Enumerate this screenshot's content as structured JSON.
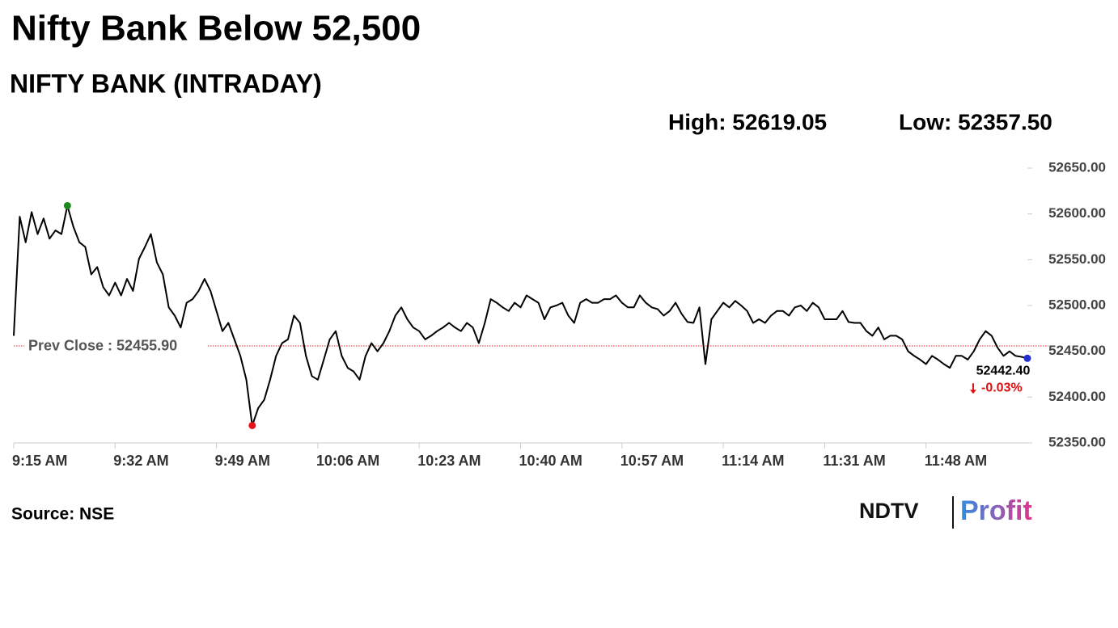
{
  "chart_data": {
    "type": "line",
    "title": "Nifty Bank Below 52,500",
    "subtitle": "NIFTY BANK (INTRADAY)",
    "high_text": "High: 52619.05",
    "low_text": "Low: 52357.50",
    "source": "Source: NSE",
    "logo": {
      "brand": "NDTV",
      "product": "Profit"
    },
    "prev_close": {
      "label": "Prev Close : 52455.90",
      "value": 52455.9
    },
    "last_value_label": "52442.40",
    "change": "-0.03%",
    "line_color": "#000000",
    "high_color": "#1a8a1a",
    "low_color": "#e8141b",
    "last_color": "#1f2fd0",
    "x": [
      "9:15 AM",
      "9:16 AM",
      "9:17 AM",
      "9:18 AM",
      "9:19 AM",
      "9:20 AM",
      "9:21 AM",
      "9:22 AM",
      "9:23 AM",
      "9:24 AM",
      "9:25 AM",
      "9:26 AM",
      "9:27 AM",
      "9:28 AM",
      "9:29 AM",
      "9:30 AM",
      "9:31 AM",
      "9:32 AM",
      "9:33 AM",
      "9:34 AM",
      "9:35 AM",
      "9:36 AM",
      "9:37 AM",
      "9:38 AM",
      "9:39 AM",
      "9:40 AM",
      "9:41 AM",
      "9:42 AM",
      "9:43 AM",
      "9:44 AM",
      "9:45 AM",
      "9:46 AM",
      "9:47 AM",
      "9:48 AM",
      "9:49 AM",
      "9:50 AM",
      "9:51 AM",
      "9:52 AM",
      "9:53 AM",
      "9:54 AM",
      "9:55 AM",
      "9:56 AM",
      "9:57 AM",
      "9:58 AM",
      "9:59 AM",
      "10:00 AM",
      "10:01 AM",
      "10:02 AM",
      "10:03 AM",
      "10:04 AM",
      "10:05 AM",
      "10:06 AM",
      "10:07 AM",
      "10:08 AM",
      "10:09 AM",
      "10:10 AM",
      "10:11 AM",
      "10:12 AM",
      "10:13 AM",
      "10:14 AM",
      "10:15 AM",
      "10:16 AM",
      "10:17 AM",
      "10:18 AM",
      "10:19 AM",
      "10:20 AM",
      "10:21 AM",
      "10:22 AM",
      "10:23 AM",
      "10:24 AM",
      "10:25 AM",
      "10:26 AM",
      "10:27 AM",
      "10:28 AM",
      "10:29 AM",
      "10:30 AM",
      "10:31 AM",
      "10:32 AM",
      "10:33 AM",
      "10:34 AM",
      "10:35 AM",
      "10:36 AM",
      "10:37 AM",
      "10:38 AM",
      "10:39 AM",
      "10:40 AM",
      "10:41 AM",
      "10:42 AM",
      "10:43 AM",
      "10:44 AM",
      "10:45 AM",
      "10:46 AM",
      "10:47 AM",
      "10:48 AM",
      "10:49 AM",
      "10:50 AM",
      "10:51 AM",
      "10:52 AM",
      "10:53 AM",
      "10:54 AM",
      "10:55 AM",
      "10:56 AM",
      "10:57 AM",
      "10:58 AM",
      "10:59 AM",
      "11:00 AM",
      "11:01 AM",
      "11:02 AM",
      "11:03 AM",
      "11:04 AM",
      "11:05 AM",
      "11:06 AM",
      "11:07 AM",
      "11:08 AM",
      "11:09 AM",
      "11:10 AM",
      "11:11 AM",
      "11:12 AM",
      "11:13 AM",
      "11:14 AM",
      "11:15 AM",
      "11:16 AM",
      "11:17 AM",
      "11:18 AM",
      "11:19 AM",
      "11:20 AM",
      "11:21 AM",
      "11:22 AM",
      "11:23 AM",
      "11:24 AM",
      "11:25 AM",
      "11:26 AM",
      "11:27 AM",
      "11:28 AM",
      "11:29 AM",
      "11:30 AM",
      "11:31 AM",
      "11:32 AM",
      "11:33 AM",
      "11:34 AM",
      "11:35 AM",
      "11:36 AM",
      "11:37 AM",
      "11:38 AM",
      "11:39 AM",
      "11:40 AM",
      "11:41 AM",
      "11:42 AM",
      "11:43 AM",
      "11:44 AM",
      "11:45 AM",
      "11:46 AM",
      "11:47 AM",
      "11:48 AM",
      "11:49 AM",
      "11:50 AM",
      "11:51 AM",
      "11:52 AM",
      "11:53 AM",
      "11:54 AM",
      "11:55 AM",
      "11:56 AM",
      "11:57 AM",
      "11:58 AM",
      "11:59 AM",
      "12:00 PM",
      "12:01 PM",
      "12:02 PM",
      "12:03 PM",
      "12:04 PM",
      "12:05 PM"
    ],
    "values": [
      52467,
      52597,
      52569,
      52602,
      52578,
      52595,
      52573,
      52582,
      52578,
      52609,
      52586,
      52569,
      52564,
      52534,
      52542,
      52520,
      52511,
      52525,
      52511,
      52529,
      52516,
      52551,
      52564,
      52578,
      52547,
      52534,
      52498,
      52489,
      52476,
      52503,
      52507,
      52516,
      52529,
      52516,
      52494,
      52472,
      52481,
      52463,
      52445,
      52419,
      52369,
      52388,
      52397,
      52419,
      52445,
      52459,
      52463,
      52489,
      52481,
      52445,
      52423,
      52419,
      52441,
      52463,
      52472,
      52445,
      52432,
      52428,
      52419,
      52445,
      52459,
      52450,
      52459,
      52472,
      52489,
      52498,
      52485,
      52476,
      52472,
      52463,
      52467,
      52472,
      52476,
      52481,
      52476,
      52472,
      52481,
      52476,
      52459,
      52481,
      52507,
      52503,
      52498,
      52494,
      52503,
      52498,
      52511,
      52507,
      52503,
      52485,
      52498,
      52500,
      52503,
      52489,
      52481,
      52503,
      52507,
      52503,
      52503,
      52507,
      52507,
      52511,
      52503,
      52498,
      52498,
      52511,
      52503,
      52498,
      52496,
      52489,
      52494,
      52503,
      52491,
      52482,
      52481,
      52498,
      52436,
      52485,
      52494,
      52503,
      52498,
      52505,
      52500,
      52494,
      52481,
      52485,
      52481,
      52489,
      52494,
      52494,
      52489,
      52498,
      52500,
      52494,
      52503,
      52498,
      52485,
      52485,
      52485,
      52494,
      52482,
      52481,
      52481,
      52472,
      52467,
      52476,
      52463,
      52467,
      52467,
      52463,
      52450,
      52445,
      52441,
      52436,
      52445,
      52441,
      52436,
      52432,
      52445,
      52445,
      52441,
      52450,
      52463,
      52472,
      52467,
      52454,
      52445,
      52450,
      52445,
      52444,
      52442.4
    ],
    "xlim": [
      "9:15 AM",
      "12:05 PM"
    ],
    "xticks": [
      "9:15 AM",
      "9:32 AM",
      "9:49 AM",
      "10:06 AM",
      "10:23 AM",
      "10:40 AM",
      "10:57 AM",
      "11:14 AM",
      "11:31 AM",
      "11:48 AM"
    ],
    "ylim": [
      52350,
      52650
    ],
    "yticks": [
      {
        "value": 52350,
        "label": "52350.00"
      },
      {
        "value": 52400,
        "label": "52400.00"
      },
      {
        "value": 52450,
        "label": "52450.00"
      },
      {
        "value": 52500,
        "label": "52500.00"
      },
      {
        "value": 52550,
        "label": "52550.00"
      },
      {
        "value": 52600,
        "label": "52600.00"
      },
      {
        "value": 52650,
        "label": "52650.00"
      }
    ]
  }
}
